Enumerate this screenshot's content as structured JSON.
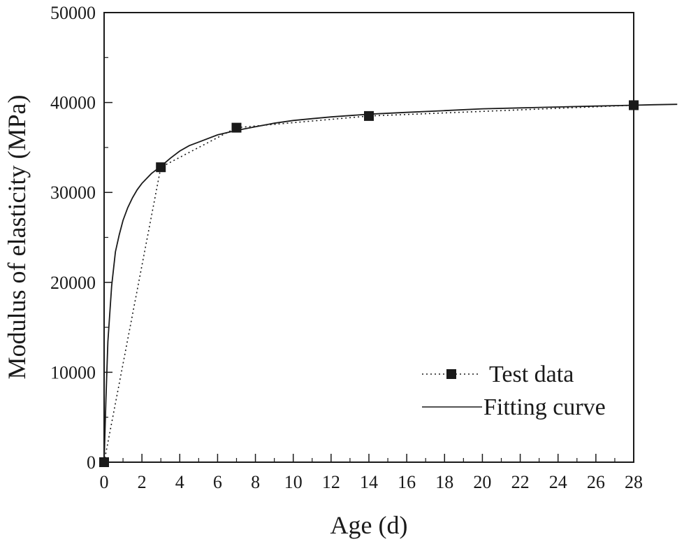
{
  "chart_data": {
    "type": "line",
    "title": "",
    "xlabel": "Age (d)",
    "ylabel": "Modulus of elasticity (MPa)",
    "xlim": [
      0,
      28
    ],
    "ylim": [
      0,
      50000
    ],
    "x_ticks": [
      0,
      2,
      4,
      6,
      8,
      10,
      12,
      14,
      16,
      18,
      20,
      22,
      24,
      26,
      28
    ],
    "x_tick_labels": [
      "0",
      "2",
      "4",
      "6",
      "8",
      "10",
      "12",
      "14",
      "16",
      "18",
      "20",
      "22",
      "24",
      "26",
      "28"
    ],
    "y_ticks": [
      0,
      10000,
      20000,
      30000,
      40000,
      50000
    ],
    "y_tick_labels": [
      "0",
      "10000",
      "20000",
      "30000",
      "40000",
      "50000"
    ],
    "grid": false,
    "legend_position": "bottom-right",
    "series": [
      {
        "name": "Test data",
        "style": "dotted-square-markers",
        "x": [
          0,
          3,
          7,
          14,
          28
        ],
        "y": [
          0,
          32800,
          37200,
          38500,
          39700
        ]
      },
      {
        "name": "Fitting curve",
        "style": "solid",
        "x": [
          0,
          0.1,
          0.2,
          0.4,
          0.6,
          0.8,
          1.0,
          1.25,
          1.5,
          1.75,
          2.0,
          2.5,
          3.0,
          3.5,
          4.0,
          4.5,
          5.0,
          6.0,
          7.0,
          8.0,
          9.0,
          10.0,
          11.0,
          12.0,
          14.0,
          16.0,
          18.0,
          20.0,
          22.0,
          24.0,
          26.0,
          28.0,
          29.0,
          30.3
        ],
        "y": [
          0,
          7200,
          13400,
          19600,
          23400,
          25300,
          26900,
          28300,
          29400,
          30300,
          31000,
          32100,
          32900,
          33800,
          34600,
          35200,
          35600,
          36400,
          36900,
          37300,
          37700,
          38000,
          38200,
          38400,
          38700,
          38900,
          39100,
          39300,
          39400,
          39500,
          39600,
          39700,
          39750,
          39800
        ]
      }
    ]
  }
}
